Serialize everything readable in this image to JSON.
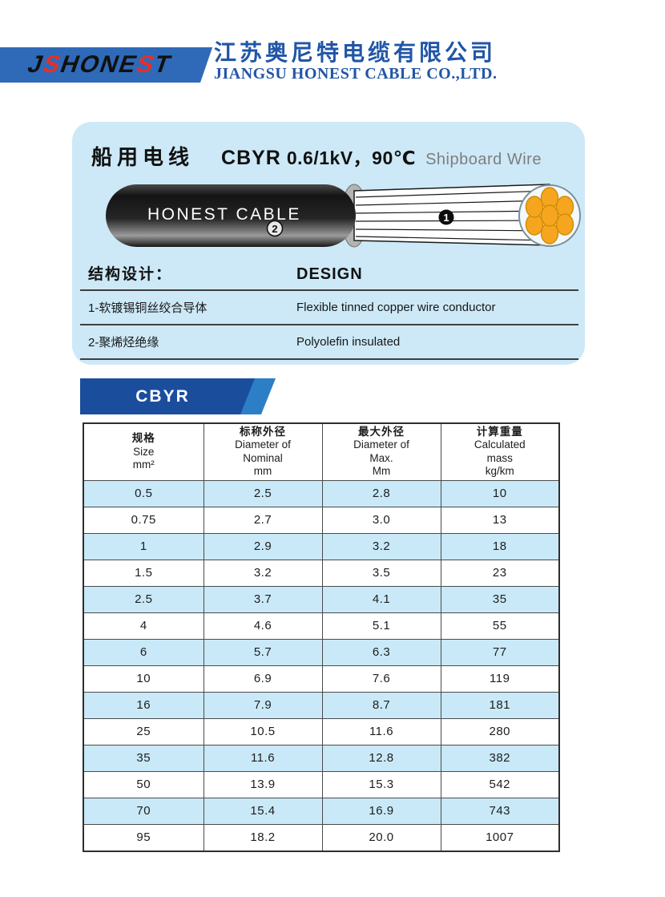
{
  "header": {
    "logo_text": "JSHONEST",
    "company_name_zh": "江苏奥尼特电缆有限公司",
    "company_name_en": "JIANGSU HONEST CABLE CO.,LTD."
  },
  "product": {
    "title_zh": "船用电线",
    "model": "CBYR",
    "rating": "0.6/1kV，90℃",
    "title_en": "Shipboard Wire",
    "cable_label": "HONEST CABLE",
    "markers": {
      "conductor": "1",
      "insulation": "2"
    },
    "design": {
      "heading_zh": "结构设计：",
      "heading_en": "DESIGN",
      "rows": [
        {
          "zh": "1-软镀锡铜丝绞合导体",
          "en": "Flexible tinned copper wire conductor"
        },
        {
          "zh": "2-聚烯烃绝缘",
          "en": "Polyolefin insulated"
        }
      ]
    }
  },
  "section_tab": {
    "label": "CBYR"
  },
  "table": {
    "columns": [
      {
        "lines": [
          "规格",
          "Size",
          "mm²"
        ]
      },
      {
        "lines": [
          "标称外径",
          "Diameter of",
          "Nominal",
          "mm"
        ]
      },
      {
        "lines": [
          "最大外径",
          "Diameter of",
          "Max.",
          "Mm"
        ]
      },
      {
        "lines": [
          "计算重量",
          "Calculated",
          "mass",
          "kg/km"
        ]
      }
    ],
    "rows": [
      [
        "0.5",
        "2.5",
        "2.8",
        "10"
      ],
      [
        "0.75",
        "2.7",
        "3.0",
        "13"
      ],
      [
        "1",
        "2.9",
        "3.2",
        "18"
      ],
      [
        "1.5",
        "3.2",
        "3.5",
        "23"
      ],
      [
        "2.5",
        "3.7",
        "4.1",
        "35"
      ],
      [
        "4",
        "4.6",
        "5.1",
        "55"
      ],
      [
        "6",
        "5.7",
        "6.3",
        "77"
      ],
      [
        "10",
        "6.9",
        "7.6",
        "119"
      ],
      [
        "16",
        "7.9",
        "8.7",
        "181"
      ],
      [
        "25",
        "10.5",
        "11.6",
        "280"
      ],
      [
        "35",
        "11.6",
        "12.8",
        "382"
      ],
      [
        "50",
        "13.9",
        "15.3",
        "542"
      ],
      [
        "70",
        "15.4",
        "16.9",
        "743"
      ],
      [
        "95",
        "18.2",
        "20.0",
        "1007"
      ]
    ]
  },
  "colors": {
    "brand_blue": "#2156a7",
    "logo_panel_blue": "#2f6ab8",
    "logo_red": "#e3302c",
    "panel_bg": "#cde9f7",
    "tab_dark_blue": "#1b4d9d",
    "tab_light_blue": "#2c7fc6",
    "table_alt_row": "#c9e9f8",
    "strand_orange": "#f6a61e"
  }
}
